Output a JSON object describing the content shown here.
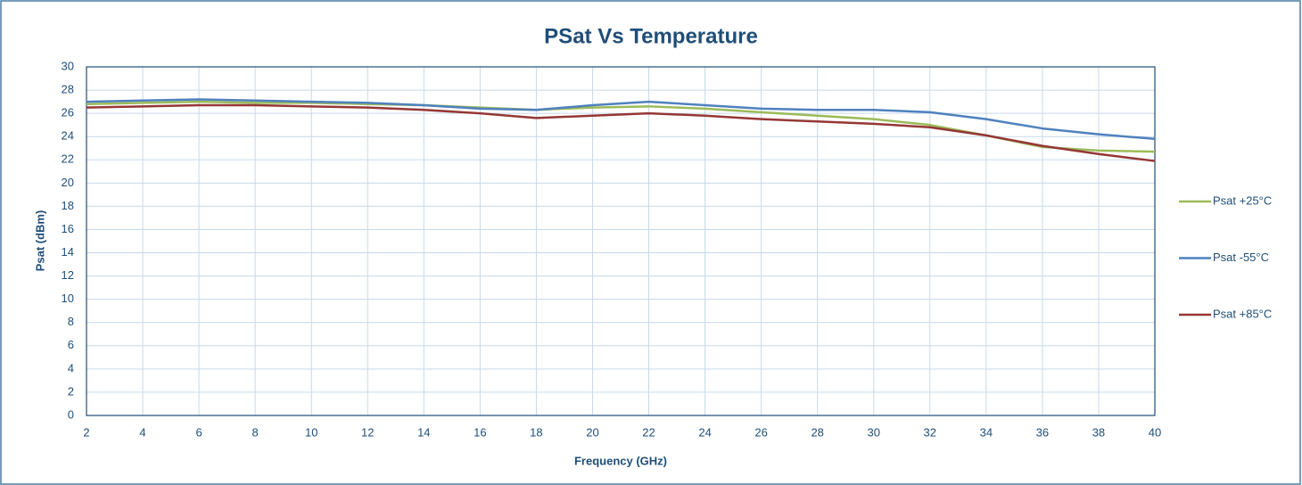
{
  "chart_data": {
    "type": "line",
    "title": "PSat Vs Temperature",
    "xlabel": "Frequency (GHz)",
    "ylabel": "Psat  (dBm)",
    "x": [
      2,
      4,
      6,
      8,
      10,
      12,
      14,
      16,
      18,
      20,
      22,
      24,
      26,
      28,
      30,
      32,
      34,
      36,
      38,
      40
    ],
    "series": [
      {
        "name": "Psat +25°C",
        "color": "#9bbb59",
        "values": [
          26.8,
          26.9,
          27.0,
          26.9,
          26.9,
          26.8,
          26.7,
          26.5,
          26.3,
          26.5,
          26.6,
          26.4,
          26.1,
          25.8,
          25.5,
          25.0,
          24.1,
          23.1,
          22.8,
          22.7
        ]
      },
      {
        "name": "Psat -55°C",
        "color": "#4f81bd",
        "values": [
          27.0,
          27.1,
          27.2,
          27.1,
          27.0,
          26.9,
          26.7,
          26.4,
          26.3,
          26.7,
          27.0,
          26.7,
          26.4,
          26.3,
          26.3,
          26.1,
          25.5,
          24.7,
          24.2,
          23.8
        ]
      },
      {
        "name": "Psat +85°C",
        "color": "#953735",
        "values": [
          26.5,
          26.6,
          26.7,
          26.7,
          26.6,
          26.5,
          26.3,
          26.0,
          25.6,
          25.8,
          26.0,
          25.8,
          25.5,
          25.3,
          25.1,
          24.8,
          24.1,
          23.2,
          22.5,
          21.9
        ]
      }
    ],
    "xlim": [
      2,
      40
    ],
    "xticks": [
      2,
      4,
      6,
      8,
      10,
      12,
      14,
      16,
      18,
      20,
      22,
      24,
      26,
      28,
      30,
      32,
      34,
      36,
      38,
      40
    ],
    "ylim": [
      0,
      30
    ],
    "yticks": [
      0,
      2,
      4,
      6,
      8,
      10,
      12,
      14,
      16,
      18,
      20,
      22,
      24,
      26,
      28,
      30
    ],
    "grid": true,
    "legend": "right"
  }
}
